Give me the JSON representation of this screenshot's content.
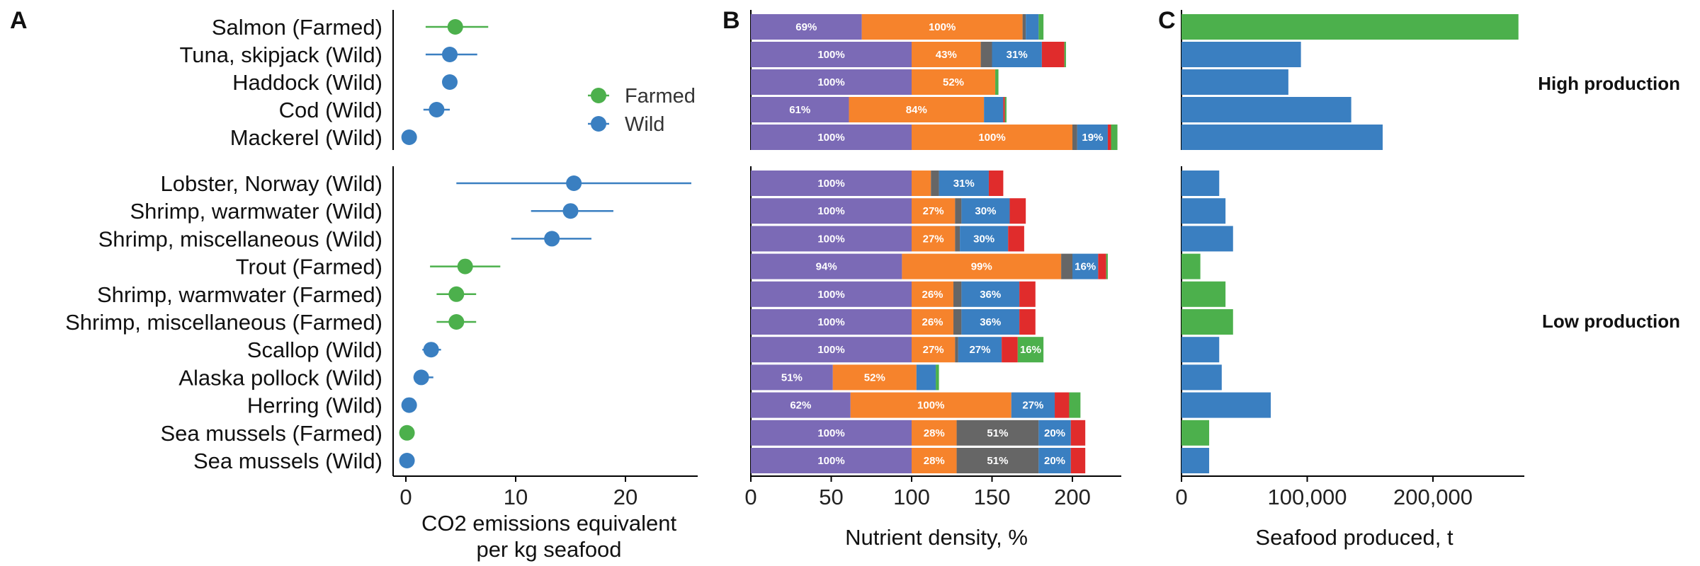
{
  "colors": {
    "farmed": "#4cb04c",
    "wild": "#3a7fc1",
    "seg": [
      "#7b6ab6",
      "#f6832c",
      "#666666",
      "#3a7fc1",
      "#e02c2c",
      "#4cb04c"
    ]
  },
  "panel_labels": [
    "A",
    "B",
    "C"
  ],
  "legend": [
    "Farmed",
    "Wild"
  ],
  "groups": [
    "High production",
    "Low production"
  ],
  "chart_data": [
    {
      "type": "scatter",
      "panel": "A",
      "xlabel": "CO2 emissions equivalent per kg seafood",
      "xlabel_lines": [
        "CO2 emissions equivalent",
        "per kg seafood"
      ],
      "xticks": [
        0,
        10,
        20
      ],
      "xlim": [
        -1,
        27
      ],
      "categories": [
        "Salmon (Farmed)",
        "Tuna, skipjack (Wild)",
        "Haddock (Wild)",
        "Cod (Wild)",
        "Mackerel (Wild)",
        "Lobster, Norway (Wild)",
        "Shrimp, warmwater (Wild)",
        "Shrimp, miscellaneous (Wild)",
        "Trout (Farmed)",
        "Shrimp, warmwater (Farmed)",
        "Shrimp, miscellaneous (Farmed)",
        "Scallop (Wild)",
        "Alaska pollock (Wild)",
        "Herring (Wild)",
        "Sea mussels (Farmed)",
        "Sea mussels (Wild)"
      ],
      "source": [
        "Farmed",
        "Wild",
        "Wild",
        "Wild",
        "Wild",
        "Wild",
        "Wild",
        "Wild",
        "Farmed",
        "Farmed",
        "Farmed",
        "Wild",
        "Wild",
        "Wild",
        "Farmed",
        "Wild"
      ],
      "values": [
        4.5,
        4.0,
        4.0,
        2.8,
        0.3,
        15.3,
        15.0,
        13.3,
        5.4,
        4.6,
        4.6,
        2.3,
        1.4,
        0.3,
        0.1,
        0.1
      ],
      "err_low": [
        1.8,
        1.8,
        null,
        1.6,
        null,
        4.6,
        11.4,
        9.6,
        2.2,
        2.8,
        2.8,
        1.5,
        0.7,
        null,
        null,
        null
      ],
      "err_high": [
        7.5,
        6.5,
        null,
        4.0,
        null,
        26.0,
        18.9,
        16.9,
        8.6,
        6.4,
        6.4,
        3.2,
        2.5,
        null,
        null,
        null
      ],
      "legend": "top-right"
    },
    {
      "type": "bar",
      "stacked": true,
      "panel": "B",
      "xlabel": "Nutrient density, %",
      "xticks": [
        0,
        50,
        100,
        150,
        200
      ],
      "xlim": [
        0,
        230
      ],
      "segments": [
        [
          69,
          100,
          2,
          8,
          0,
          3
        ],
        [
          100,
          43,
          7,
          31,
          14,
          1
        ],
        [
          100,
          52,
          0,
          0,
          0,
          2
        ],
        [
          61,
          84,
          0,
          12,
          1,
          1
        ],
        [
          100,
          100,
          3,
          19,
          2,
          4
        ],
        [
          100,
          12,
          5,
          31,
          9,
          0
        ],
        [
          100,
          27,
          4,
          30,
          10,
          0
        ],
        [
          100,
          27,
          3,
          30,
          10,
          0
        ],
        [
          94,
          99,
          7,
          16,
          5,
          1
        ],
        [
          100,
          26,
          5,
          36,
          10,
          0
        ],
        [
          100,
          26,
          5,
          36,
          10,
          0
        ],
        [
          100,
          27,
          2,
          27,
          10,
          16
        ],
        [
          51,
          52,
          0,
          12,
          0,
          2
        ],
        [
          62,
          100,
          0,
          27,
          9,
          7
        ],
        [
          100,
          28,
          51,
          20,
          9,
          0
        ],
        [
          100,
          28,
          51,
          20,
          9,
          0
        ]
      ],
      "labels": [
        [
          "69%",
          "100%",
          "",
          "",
          "",
          ""
        ],
        [
          "100%",
          "43%",
          "",
          "31%",
          "",
          ""
        ],
        [
          "100%",
          "52%",
          "",
          "",
          "",
          ""
        ],
        [
          "61%",
          "84%",
          "",
          "",
          "",
          ""
        ],
        [
          "100%",
          "100%",
          "",
          "19%",
          "",
          ""
        ],
        [
          "100%",
          "",
          "",
          "31%",
          "",
          ""
        ],
        [
          "100%",
          "27%",
          "",
          "30%",
          "",
          ""
        ],
        [
          "100%",
          "27%",
          "",
          "30%",
          "",
          ""
        ],
        [
          "94%",
          "99%",
          "",
          "16%",
          "",
          ""
        ],
        [
          "100%",
          "26%",
          "",
          "36%",
          "",
          ""
        ],
        [
          "100%",
          "26%",
          "",
          "36%",
          "",
          ""
        ],
        [
          "100%",
          "27%",
          "",
          "27%",
          "",
          "16%"
        ],
        [
          "51%",
          "52%",
          "",
          "",
          "",
          ""
        ],
        [
          "62%",
          "100%",
          "",
          "27%",
          "",
          ""
        ],
        [
          "100%",
          "28%",
          "51%",
          "20%",
          "",
          ""
        ],
        [
          "100%",
          "28%",
          "51%",
          "20%",
          "",
          ""
        ]
      ]
    },
    {
      "type": "bar",
      "panel": "C",
      "xlabel": "Seafood produced, t",
      "xticks": [
        0,
        100000,
        200000
      ],
      "xtick_labels": [
        "0",
        "100,000",
        "200,000"
      ],
      "xlim": [
        0,
        280000
      ],
      "values": [
        268000,
        95000,
        85000,
        135000,
        160000,
        30000,
        35000,
        41000,
        15000,
        35000,
        41000,
        30000,
        32000,
        71000,
        22000,
        22000
      ]
    }
  ]
}
